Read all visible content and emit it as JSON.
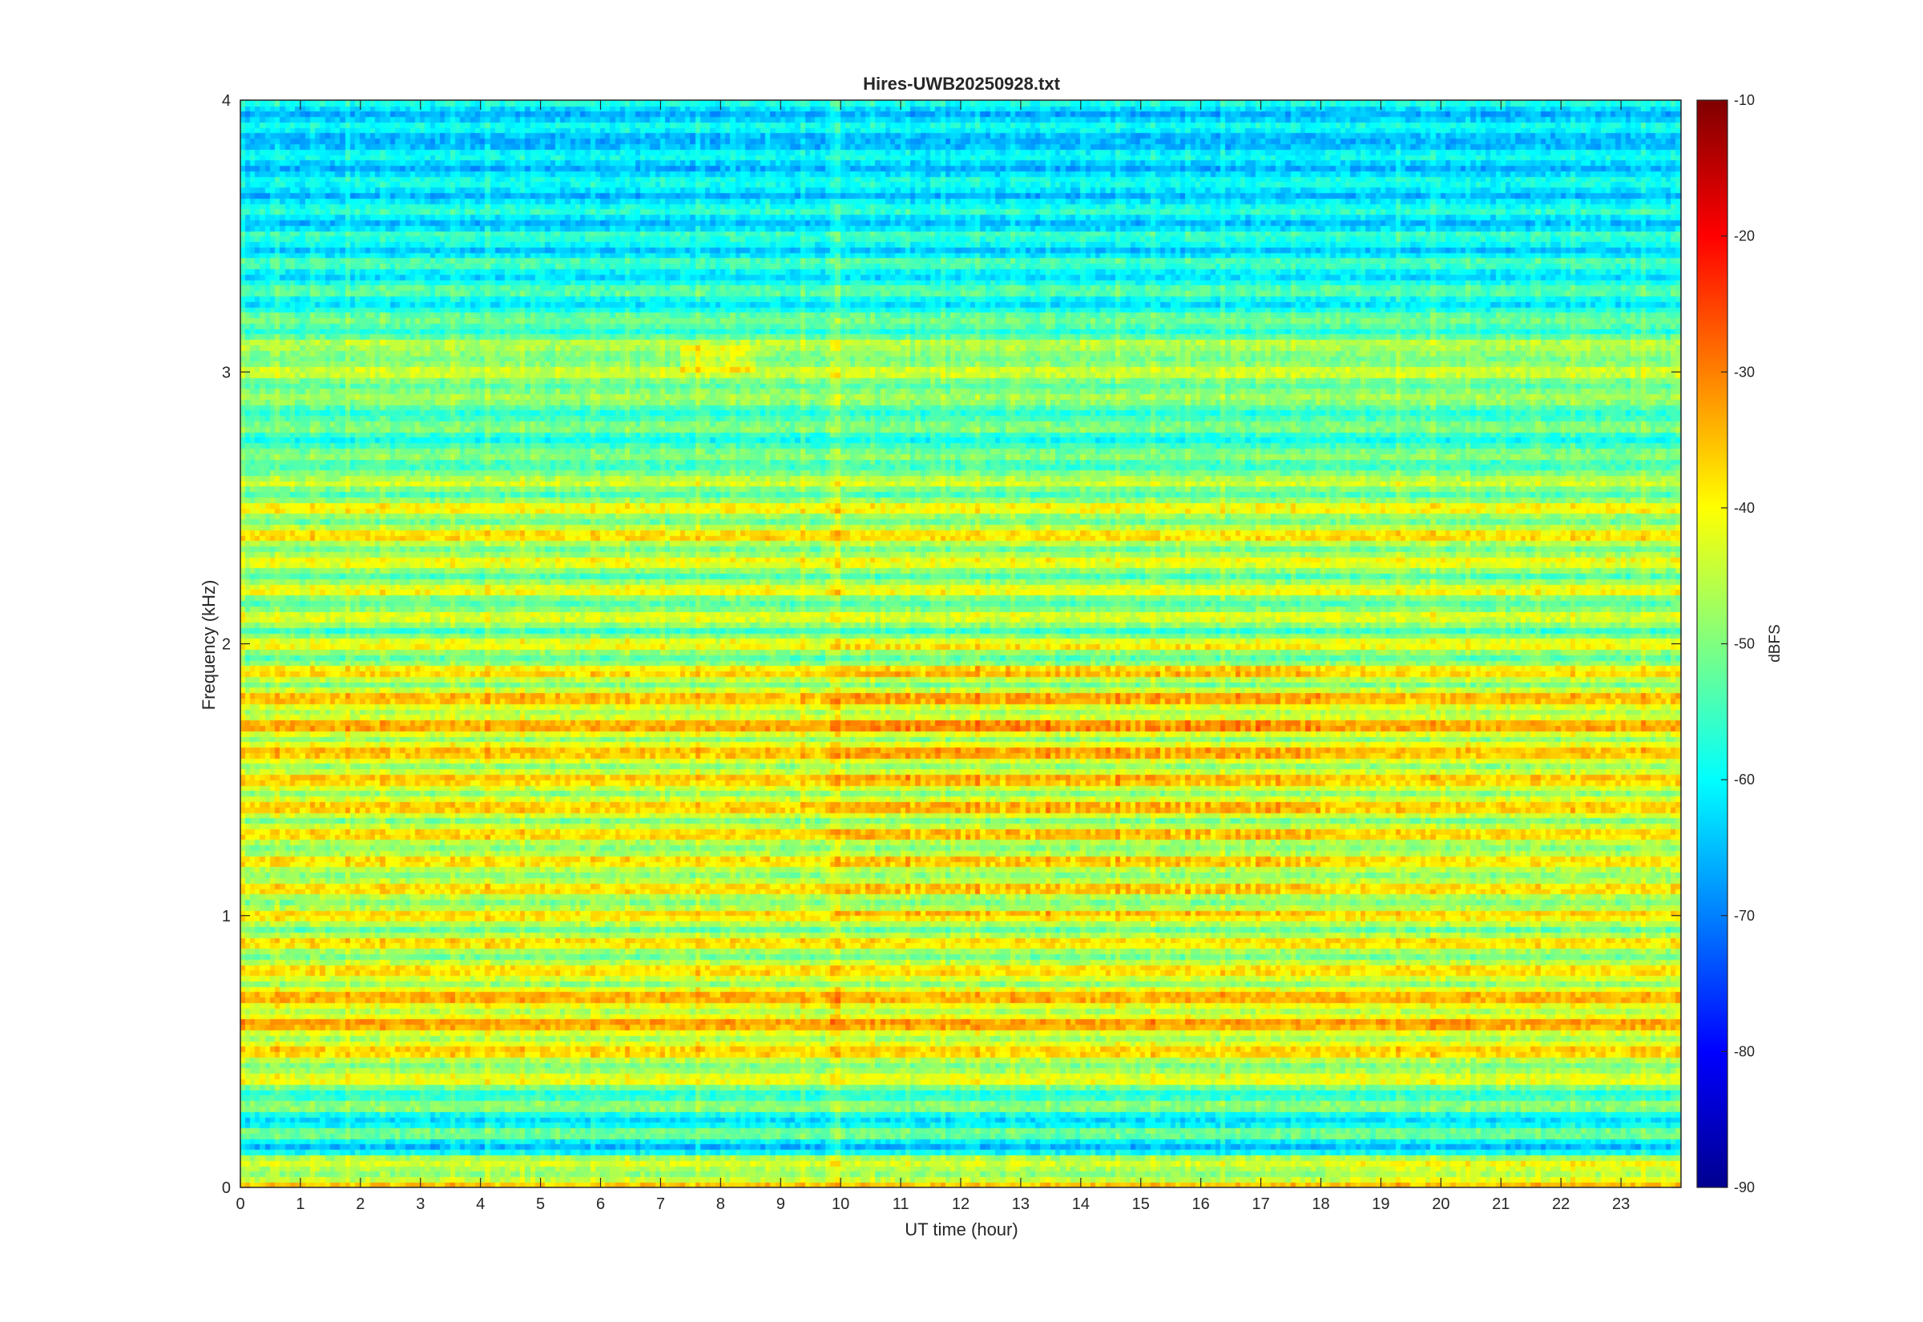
{
  "chart_data": {
    "type": "heatmap",
    "title": "Hires-UWB20250928.txt",
    "xlabel": "UT time (hour)",
    "ylabel": "Frequency (kHz)",
    "colorbar_label": "dBFS",
    "xlim": [
      0,
      24
    ],
    "ylim": [
      0,
      4
    ],
    "clim": [
      -90,
      -10
    ],
    "colormap": "jet",
    "grid": false,
    "x_ticks": [
      0,
      1,
      2,
      3,
      4,
      5,
      6,
      7,
      8,
      9,
      10,
      11,
      12,
      13,
      14,
      15,
      16,
      17,
      18,
      19,
      20,
      21,
      22,
      23
    ],
    "y_ticks": [
      0,
      1,
      2,
      3,
      4
    ],
    "colorbar_ticks": [
      -90,
      -80,
      -70,
      -60,
      -50,
      -40,
      -30,
      -20,
      -10
    ],
    "time_steps": 288,
    "freq_bins": 200,
    "approx_levels_by_freq": [
      {
        "freq_khz": 0.05,
        "dbfs": -42
      },
      {
        "freq_khz": 0.15,
        "dbfs": -60
      },
      {
        "freq_khz": 0.3,
        "dbfs": -55
      },
      {
        "freq_khz": 0.45,
        "dbfs": -44
      },
      {
        "freq_khz": 0.65,
        "dbfs": -38
      },
      {
        "freq_khz": 0.85,
        "dbfs": -45
      },
      {
        "freq_khz": 1.0,
        "dbfs": -44
      },
      {
        "freq_khz": 1.25,
        "dbfs": -43
      },
      {
        "freq_khz": 1.5,
        "dbfs": -42
      },
      {
        "freq_khz": 1.75,
        "dbfs": -40
      },
      {
        "freq_khz": 2.0,
        "dbfs": -48
      },
      {
        "freq_khz": 2.25,
        "dbfs": -47
      },
      {
        "freq_khz": 2.45,
        "dbfs": -44
      },
      {
        "freq_khz": 2.75,
        "dbfs": -55
      },
      {
        "freq_khz": 3.05,
        "dbfs": -47
      },
      {
        "freq_khz": 3.25,
        "dbfs": -57
      },
      {
        "freq_khz": 3.5,
        "dbfs": -60
      },
      {
        "freq_khz": 3.8,
        "dbfs": -63
      },
      {
        "freq_khz": 4.0,
        "dbfs": -62
      }
    ]
  }
}
